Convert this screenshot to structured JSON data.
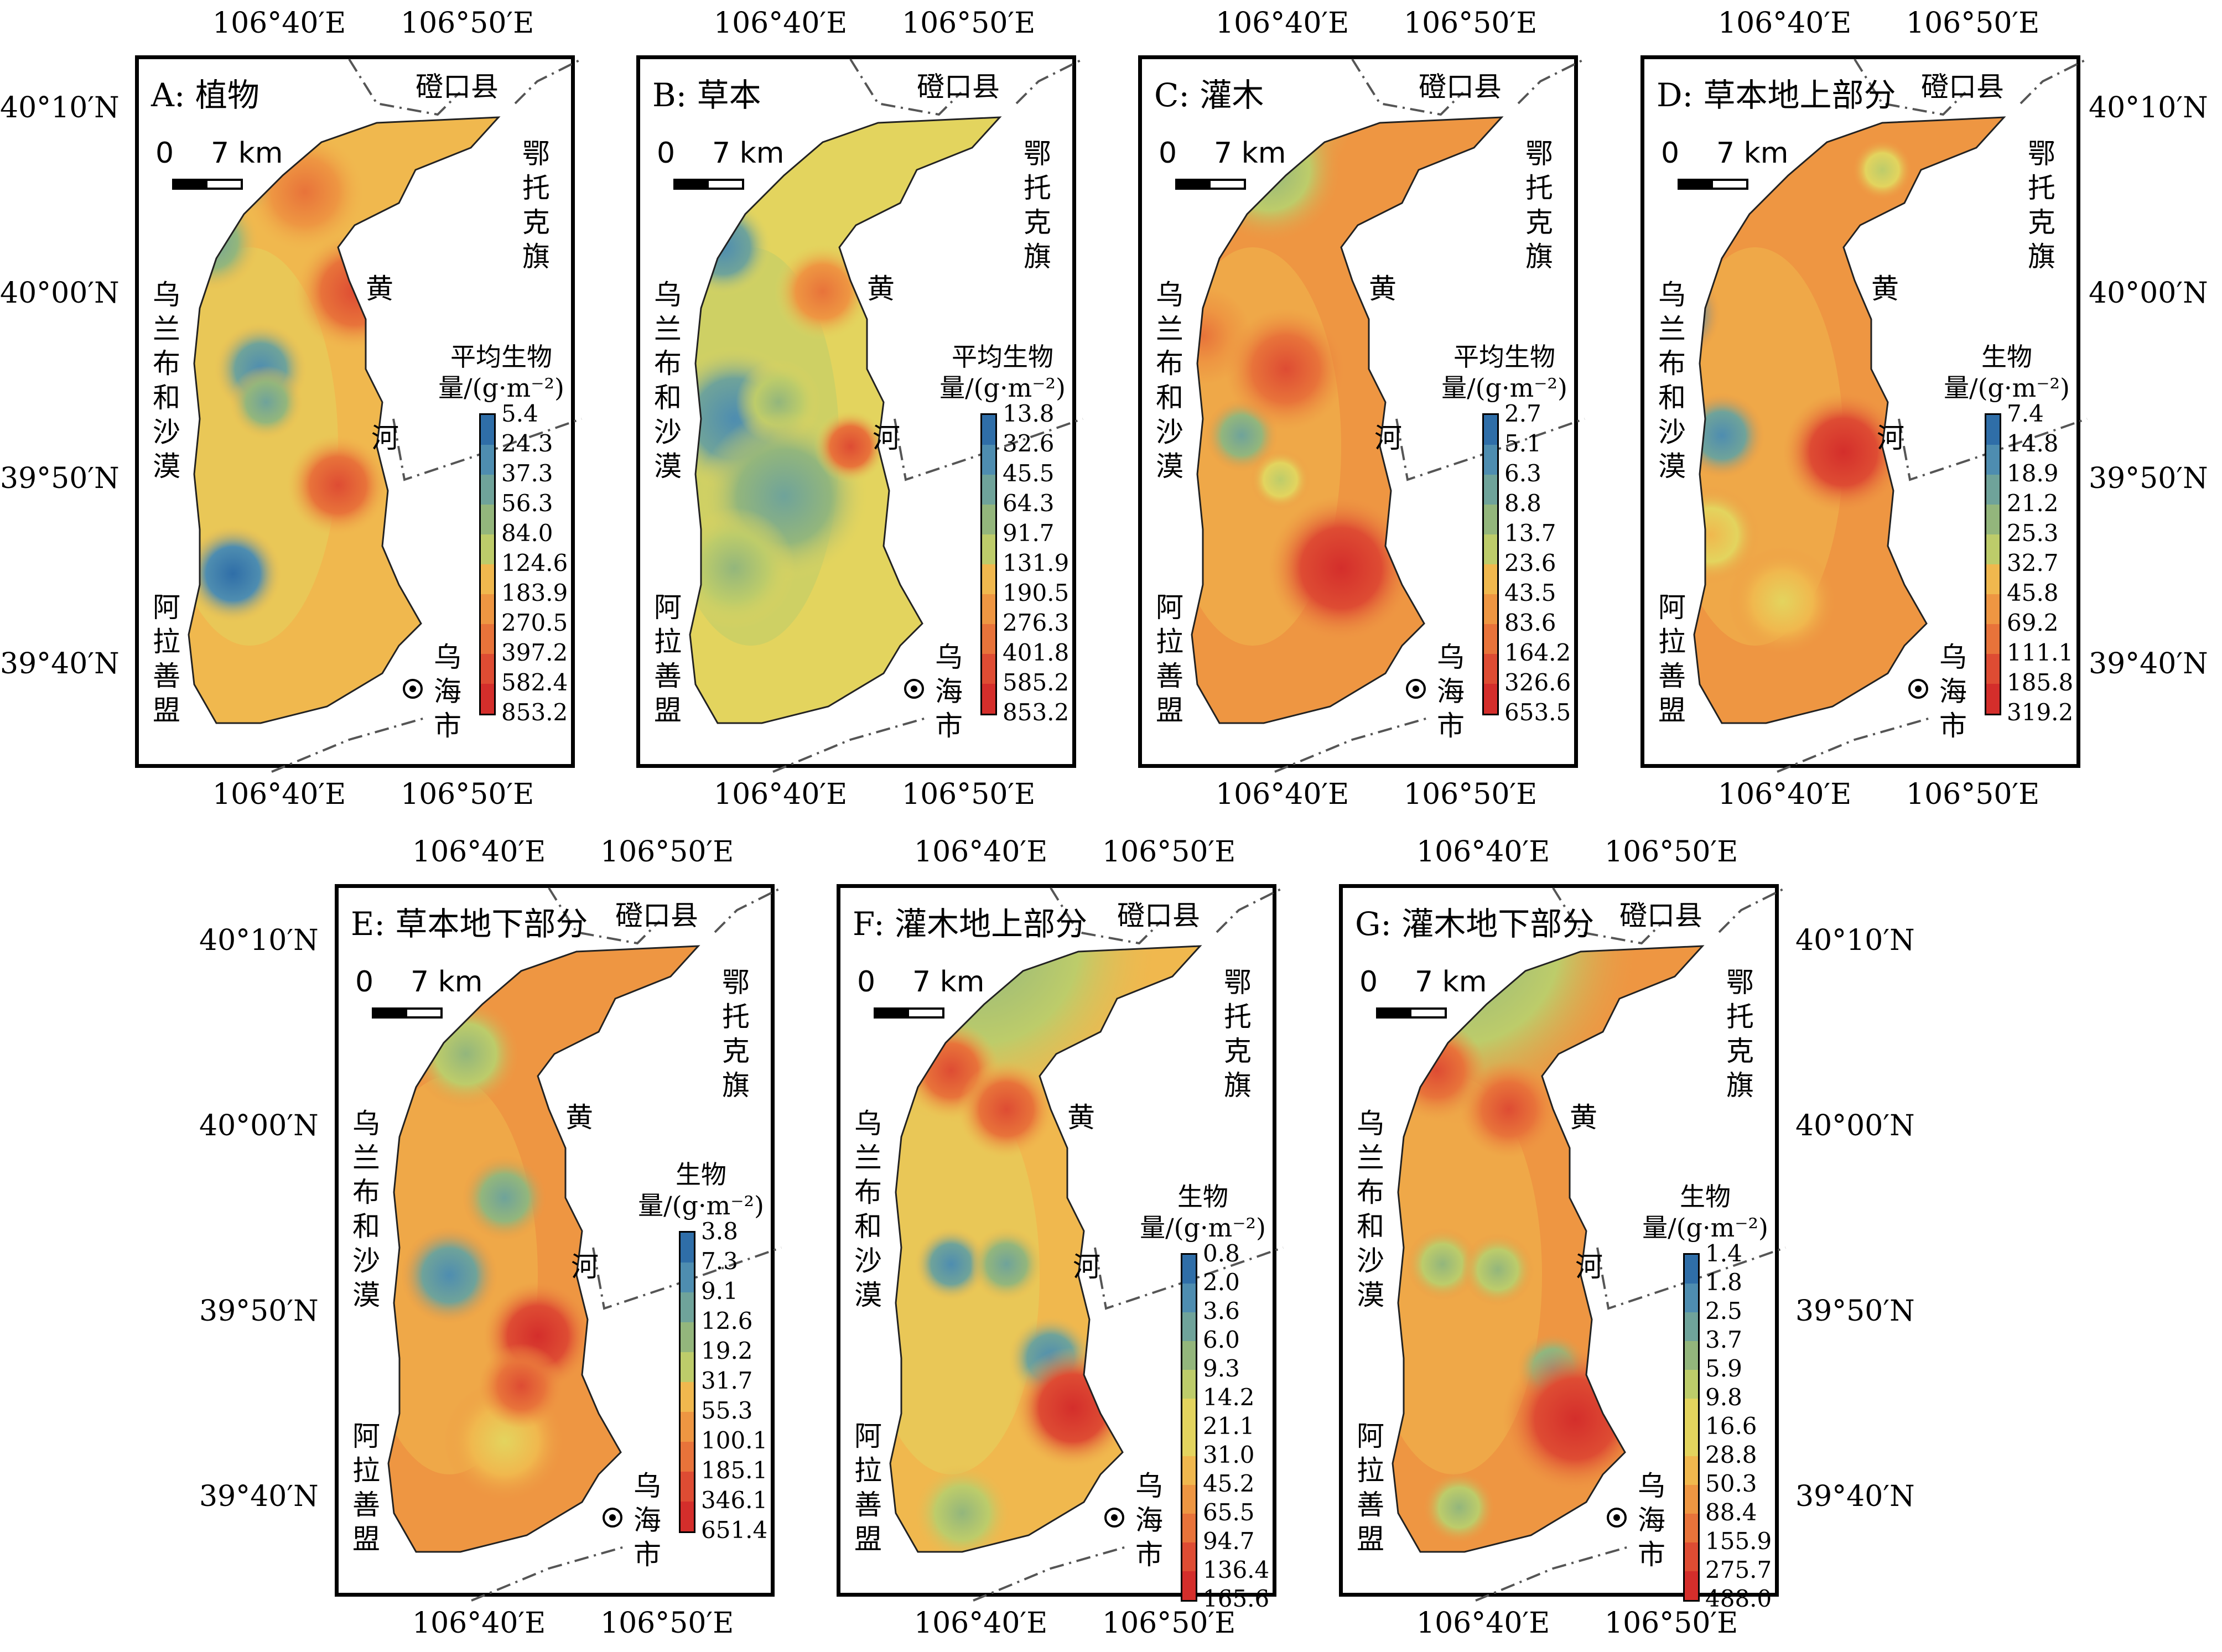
{
  "coords": {
    "lon1": "106°40′E",
    "lon2": "106°50′E",
    "lat1": "40°10′N",
    "lat2": "40°00′N",
    "lat3": "39°50′N",
    "lat4": "39°40′N"
  },
  "places": {
    "dengkou": "磴口县",
    "etuoke": "鄂托克旗",
    "huang": "黄",
    "he": "河",
    "wulanbuhe": "乌兰布和沙漠",
    "alashan": "阿拉善盟",
    "wuhai": "乌海市"
  },
  "scale": {
    "zero": "0",
    "km": "7 km"
  },
  "colors": [
    "#2f6ea8",
    "#4e8db0",
    "#6fa39a",
    "#93b67c",
    "#bdcc6a",
    "#e3d45e",
    "#f0b84e",
    "#ee9642",
    "#e8733a",
    "#de4c33",
    "#d42e2b"
  ],
  "panels": [
    {
      "title": "A: 植物",
      "legend_title": "平均生物量/(g·m⁻²)",
      "legend": [
        "5.4",
        "24.3",
        "37.3",
        "56.3",
        "84.0",
        "124.6",
        "183.9",
        "270.5",
        "397.2",
        "582.4",
        "853.2"
      ]
    },
    {
      "title": "B: 草本",
      "legend_title": "平均生物量/(g·m⁻²)",
      "legend": [
        "13.8",
        "32.6",
        "45.5",
        "64.3",
        "91.7",
        "131.9",
        "190.5",
        "276.3",
        "401.8",
        "585.2",
        "853.2"
      ]
    },
    {
      "title": "C: 灌木",
      "legend_title": "平均生物量/(g·m⁻²)",
      "legend": [
        "2.7",
        "5.1",
        "6.3",
        "8.8",
        "13.7",
        "23.6",
        "43.5",
        "83.6",
        "164.2",
        "326.6",
        "653.5"
      ]
    },
    {
      "title": "D: 草本地上部分",
      "legend_title": "生物量/(g·m⁻²)",
      "legend": [
        "7.4",
        "14.8",
        "18.9",
        "21.2",
        "25.3",
        "32.7",
        "45.8",
        "69.2",
        "111.1",
        "185.8",
        "319.2"
      ]
    },
    {
      "title": "E: 草本地下部分",
      "legend_title": "生物量/(g·m⁻²)",
      "legend": [
        "3.8",
        "7.3",
        "9.1",
        "12.6",
        "19.2",
        "31.7",
        "55.3",
        "100.1",
        "185.1",
        "346.1",
        "651.4"
      ]
    },
    {
      "title": "F: 灌木地上部分",
      "legend_title": "生物量/(g·m⁻²)",
      "legend": [
        "0.8",
        "2.0",
        "3.6",
        "6.0",
        "9.3",
        "14.2",
        "21.1",
        "31.0",
        "45.2",
        "65.5",
        "94.7",
        "136.4",
        "165.6"
      ]
    },
    {
      "title": "G: 灌木地下部分",
      "legend_title": "生物量/(g·m⁻²)",
      "legend": [
        "1.4",
        "1.8",
        "2.5",
        "3.7",
        "5.9",
        "9.8",
        "16.6",
        "28.8",
        "50.3",
        "88.4",
        "155.9",
        "275.7",
        "488.0"
      ]
    }
  ]
}
